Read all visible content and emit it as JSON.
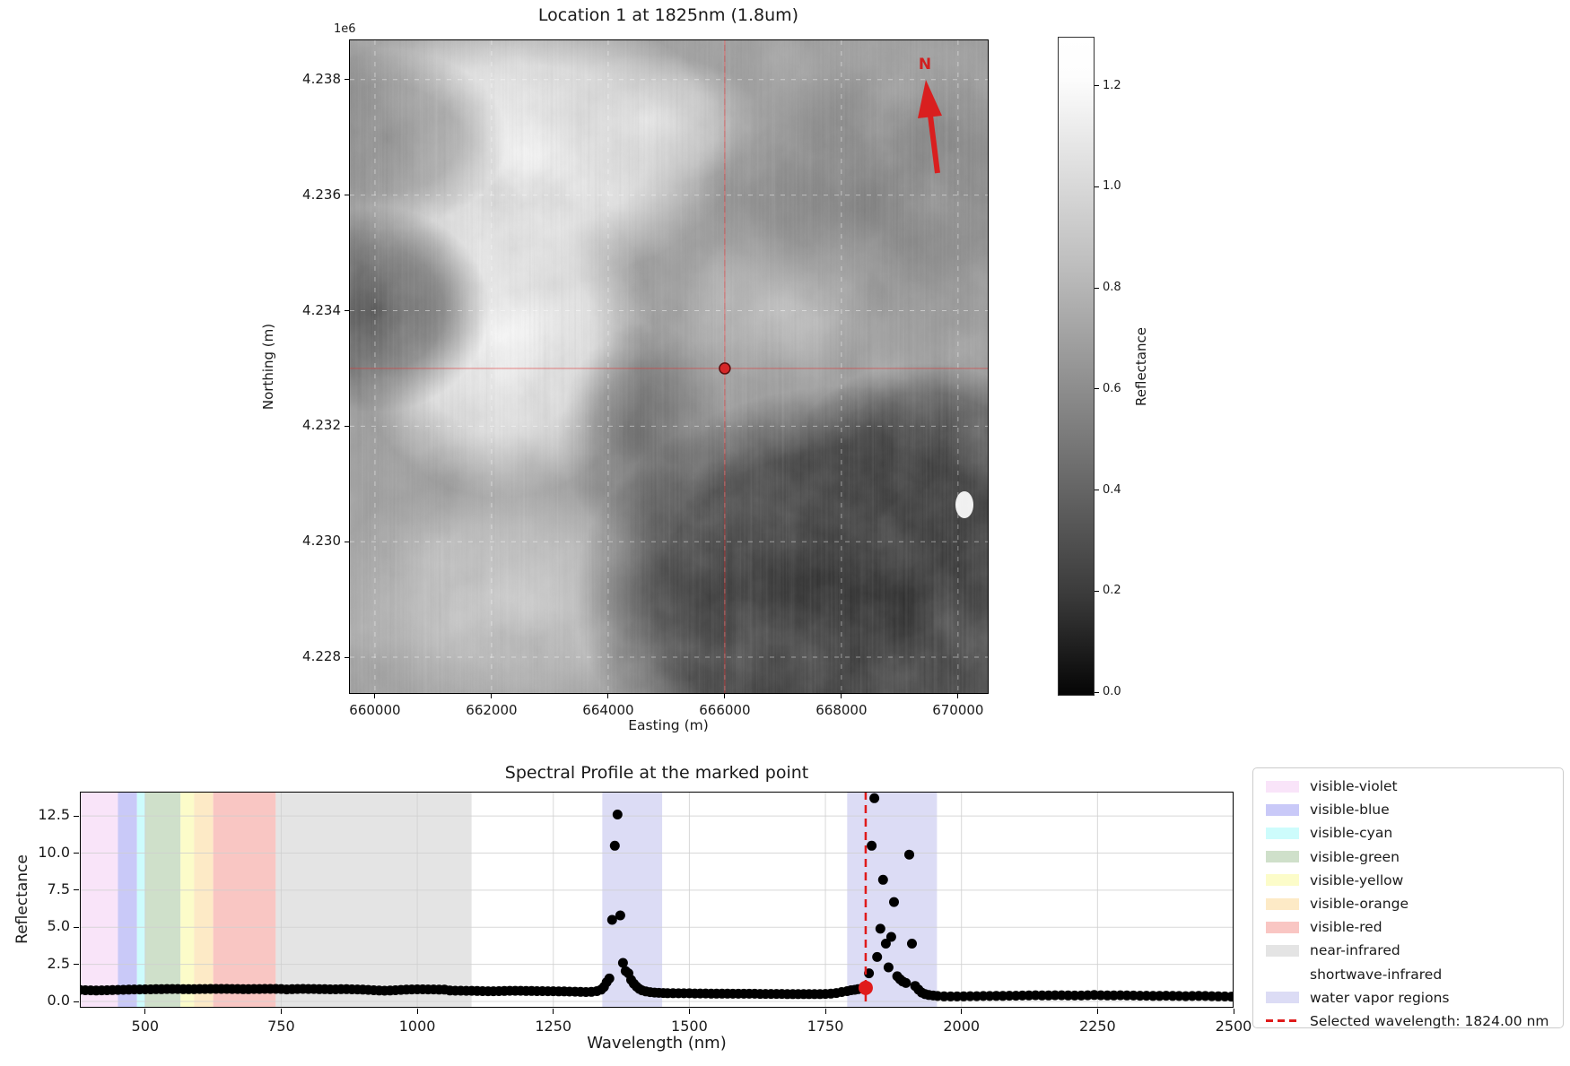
{
  "map": {
    "title": "Location 1 at 1825nm (1.8um)",
    "xlabel": "Easting (m)",
    "ylabel": "Northing (m)",
    "offset_label": "1e6",
    "north_label": "N",
    "x_tick_labels": [
      "660000",
      "662000",
      "664000",
      "666000",
      "668000",
      "670000"
    ],
    "y_tick_labels": [
      "4.238",
      "4.236",
      "4.234",
      "4.232",
      "4.230",
      "4.228"
    ],
    "marker_color": "#d62728",
    "crosshair_color": "#e03131"
  },
  "colorbar": {
    "label": "Reflectance",
    "tick_labels": [
      "0.0",
      "0.2",
      "0.4",
      "0.6",
      "0.8",
      "1.0",
      "1.2"
    ]
  },
  "spectrum": {
    "title": "Spectral Profile at the marked point",
    "xlabel": "Wavelength (nm)",
    "ylabel": "Reflectance",
    "x_tick_labels": [
      "500",
      "750",
      "1000",
      "1250",
      "1500",
      "1750",
      "2000",
      "2250",
      "2500"
    ],
    "y_tick_labels": [
      "0.0",
      "2.5",
      "5.0",
      "7.5",
      "10.0",
      "12.5"
    ]
  },
  "legend": {
    "entries": [
      {
        "label": "visible-violet",
        "swatch": "#f9e4f9",
        "kind": "patch"
      },
      {
        "label": "visible-blue",
        "swatch": "#c9c9f8",
        "kind": "patch"
      },
      {
        "label": "visible-cyan",
        "swatch": "#cdfcfc",
        "kind": "patch"
      },
      {
        "label": "visible-green",
        "swatch": "#cfe0ca",
        "kind": "patch"
      },
      {
        "label": "visible-yellow",
        "swatch": "#fcfcc9",
        "kind": "patch"
      },
      {
        "label": "visible-orange",
        "swatch": "#fdeac6",
        "kind": "patch"
      },
      {
        "label": "visible-red",
        "swatch": "#f9c6c3",
        "kind": "patch"
      },
      {
        "label": "near-infrared",
        "swatch": "#e4e4e4",
        "kind": "patch"
      },
      {
        "label": "shortwave-infrared",
        "swatch": "#ffffff",
        "kind": "patch"
      },
      {
        "label": "water vapor regions",
        "swatch": "#dcdcf5",
        "kind": "patch"
      },
      {
        "label": "Selected wavelength: 1824.00 nm",
        "swatch": "#e01b1b",
        "kind": "dashed-line"
      }
    ]
  },
  "chart_data": [
    {
      "type": "heatmap",
      "title": "Location 1 at 1825nm (1.8um)",
      "xlabel": "Easting (m)",
      "ylabel": "Northing (m)",
      "x_ticks": [
        660000,
        662000,
        664000,
        666000,
        668000,
        670000
      ],
      "y_ticks": [
        4238000,
        4236000,
        4234000,
        4232000,
        4230000,
        4228000
      ],
      "xlim": [
        659570,
        670510
      ],
      "ylim": [
        4227380,
        4238680
      ],
      "grid": true,
      "marked_point": {
        "easting": 666000,
        "northing": 4233000
      },
      "north_arrow": true,
      "colorbar": {
        "label": "Reflectance",
        "ticks": [
          0.0,
          0.2,
          0.4,
          0.6,
          0.8,
          1.0,
          1.2
        ],
        "vmin": -0.005,
        "vmax": 1.295
      },
      "description": "grayscale terrain reflectance image; bright high-reflectance ridge upper-left/center, dark low-reflectance basin lower-right with vertical sensor striping"
    },
    {
      "type": "scatter",
      "title": "Spectral Profile at the marked point",
      "xlabel": "Wavelength (nm)",
      "ylabel": "Reflectance",
      "xlim": [
        380,
        2500
      ],
      "ylim": [
        -0.42,
        14.14
      ],
      "x_ticks": [
        500,
        750,
        1000,
        1250,
        1500,
        1750,
        2000,
        2250,
        2500
      ],
      "y_ticks": [
        0.0,
        2.5,
        5.0,
        7.5,
        10.0,
        12.5
      ],
      "grid": true,
      "marker_color": "#000000",
      "selected": {
        "wavelength": 1824.0,
        "reflectance": 0.92,
        "label": "Selected wavelength: 1824.00 nm",
        "color": "#e01b1b"
      },
      "bands": [
        {
          "label": "visible-violet",
          "ranges": [
            [
              380,
              450
            ]
          ],
          "color": "#f9e4f9"
        },
        {
          "label": "visible-blue",
          "ranges": [
            [
              450,
              485
            ]
          ],
          "color": "#c9c9f8"
        },
        {
          "label": "visible-cyan",
          "ranges": [
            [
              485,
              500
            ]
          ],
          "color": "#cdfcfc"
        },
        {
          "label": "visible-green",
          "ranges": [
            [
              500,
              565
            ]
          ],
          "color": "#cfe0ca"
        },
        {
          "label": "visible-yellow",
          "ranges": [
            [
              565,
              590
            ]
          ],
          "color": "#fcfcc9"
        },
        {
          "label": "visible-orange",
          "ranges": [
            [
              590,
              625
            ]
          ],
          "color": "#fdeac6"
        },
        {
          "label": "visible-red",
          "ranges": [
            [
              625,
              740
            ]
          ],
          "color": "#f9c6c3"
        },
        {
          "label": "near-infrared",
          "ranges": [
            [
              740,
              1100
            ]
          ],
          "color": "#e4e4e4"
        },
        {
          "label": "shortwave-infrared",
          "ranges": [
            [
              1100,
              2500
            ]
          ],
          "color": "#ffffff"
        },
        {
          "label": "water vapor regions",
          "ranges": [
            [
              1340,
              1450
            ],
            [
              1790,
              1955
            ]
          ],
          "color": "#dcdcf5"
        }
      ],
      "points": [
        [
          380,
          0.78
        ],
        [
          390,
          0.76
        ],
        [
          400,
          0.75
        ],
        [
          410,
          0.74
        ],
        [
          420,
          0.75
        ],
        [
          430,
          0.76
        ],
        [
          440,
          0.77
        ],
        [
          450,
          0.78
        ],
        [
          460,
          0.79
        ],
        [
          470,
          0.8
        ],
        [
          480,
          0.81
        ],
        [
          490,
          0.81
        ],
        [
          500,
          0.82
        ],
        [
          510,
          0.82
        ],
        [
          520,
          0.83
        ],
        [
          530,
          0.83
        ],
        [
          540,
          0.84
        ],
        [
          550,
          0.84
        ],
        [
          560,
          0.84
        ],
        [
          570,
          0.83
        ],
        [
          580,
          0.83
        ],
        [
          590,
          0.83
        ],
        [
          600,
          0.84
        ],
        [
          610,
          0.84
        ],
        [
          620,
          0.85
        ],
        [
          630,
          0.85
        ],
        [
          640,
          0.85
        ],
        [
          650,
          0.85
        ],
        [
          660,
          0.84
        ],
        [
          670,
          0.84
        ],
        [
          680,
          0.83
        ],
        [
          690,
          0.83
        ],
        [
          700,
          0.84
        ],
        [
          710,
          0.84
        ],
        [
          720,
          0.85
        ],
        [
          730,
          0.85
        ],
        [
          740,
          0.85
        ],
        [
          750,
          0.84
        ],
        [
          760,
          0.81
        ],
        [
          770,
          0.83
        ],
        [
          780,
          0.84
        ],
        [
          790,
          0.85
        ],
        [
          800,
          0.84
        ],
        [
          810,
          0.84
        ],
        [
          820,
          0.83
        ],
        [
          830,
          0.83
        ],
        [
          840,
          0.82
        ],
        [
          850,
          0.82
        ],
        [
          860,
          0.83
        ],
        [
          870,
          0.83
        ],
        [
          880,
          0.82
        ],
        [
          890,
          0.81
        ],
        [
          900,
          0.8
        ],
        [
          910,
          0.78
        ],
        [
          920,
          0.76
        ],
        [
          930,
          0.74
        ],
        [
          940,
          0.73
        ],
        [
          950,
          0.74
        ],
        [
          960,
          0.76
        ],
        [
          970,
          0.78
        ],
        [
          980,
          0.8
        ],
        [
          990,
          0.81
        ],
        [
          1000,
          0.82
        ],
        [
          1010,
          0.82
        ],
        [
          1020,
          0.81
        ],
        [
          1030,
          0.81
        ],
        [
          1040,
          0.8
        ],
        [
          1050,
          0.8
        ],
        [
          1060,
          0.74
        ],
        [
          1070,
          0.73
        ],
        [
          1080,
          0.73
        ],
        [
          1090,
          0.72
        ],
        [
          1100,
          0.72
        ],
        [
          1110,
          0.71
        ],
        [
          1120,
          0.7
        ],
        [
          1130,
          0.69
        ],
        [
          1140,
          0.69
        ],
        [
          1150,
          0.7
        ],
        [
          1160,
          0.71
        ],
        [
          1170,
          0.72
        ],
        [
          1180,
          0.72
        ],
        [
          1190,
          0.72
        ],
        [
          1200,
          0.71
        ],
        [
          1210,
          0.71
        ],
        [
          1220,
          0.7
        ],
        [
          1230,
          0.7
        ],
        [
          1240,
          0.69
        ],
        [
          1250,
          0.69
        ],
        [
          1260,
          0.68
        ],
        [
          1270,
          0.68
        ],
        [
          1280,
          0.67
        ],
        [
          1290,
          0.66
        ],
        [
          1300,
          0.65
        ],
        [
          1310,
          0.64
        ],
        [
          1320,
          0.65
        ],
        [
          1330,
          0.7
        ],
        [
          1338,
          0.8
        ],
        [
          1343,
          0.98
        ],
        [
          1348,
          1.3
        ],
        [
          1353,
          1.55
        ],
        [
          1358,
          5.5
        ],
        [
          1363,
          10.5
        ],
        [
          1368,
          12.6
        ],
        [
          1373,
          5.8
        ],
        [
          1378,
          2.6
        ],
        [
          1383,
          2.05
        ],
        [
          1388,
          1.9
        ],
        [
          1393,
          1.45
        ],
        [
          1398,
          1.2
        ],
        [
          1403,
          1.0
        ],
        [
          1408,
          0.85
        ],
        [
          1413,
          0.75
        ],
        [
          1420,
          0.68
        ],
        [
          1428,
          0.63
        ],
        [
          1436,
          0.6
        ],
        [
          1444,
          0.58
        ],
        [
          1452,
          0.57
        ],
        [
          1460,
          0.56
        ],
        [
          1470,
          0.56
        ],
        [
          1480,
          0.55
        ],
        [
          1490,
          0.55
        ],
        [
          1500,
          0.55
        ],
        [
          1510,
          0.54
        ],
        [
          1520,
          0.54
        ],
        [
          1530,
          0.54
        ],
        [
          1540,
          0.53
        ],
        [
          1550,
          0.53
        ],
        [
          1560,
          0.53
        ],
        [
          1570,
          0.53
        ],
        [
          1580,
          0.52
        ],
        [
          1590,
          0.52
        ],
        [
          1600,
          0.52
        ],
        [
          1610,
          0.52
        ],
        [
          1620,
          0.52
        ],
        [
          1630,
          0.51
        ],
        [
          1640,
          0.51
        ],
        [
          1650,
          0.51
        ],
        [
          1660,
          0.51
        ],
        [
          1670,
          0.51
        ],
        [
          1680,
          0.5
        ],
        [
          1690,
          0.5
        ],
        [
          1700,
          0.5
        ],
        [
          1710,
          0.5
        ],
        [
          1720,
          0.5
        ],
        [
          1730,
          0.5
        ],
        [
          1740,
          0.5
        ],
        [
          1750,
          0.51
        ],
        [
          1760,
          0.53
        ],
        [
          1770,
          0.57
        ],
        [
          1780,
          0.64
        ],
        [
          1790,
          0.7
        ],
        [
          1797,
          0.76
        ],
        [
          1804,
          0.79
        ],
        [
          1810,
          0.83
        ],
        [
          1817,
          0.88
        ],
        [
          1830,
          1.9
        ],
        [
          1835,
          10.5
        ],
        [
          1840,
          13.7
        ],
        [
          1845,
          3.0
        ],
        [
          1851,
          4.9
        ],
        [
          1856,
          8.2
        ],
        [
          1861,
          3.9
        ],
        [
          1866,
          2.3
        ],
        [
          1871,
          4.35
        ],
        [
          1876,
          6.7
        ],
        [
          1882,
          1.7
        ],
        [
          1887,
          1.5
        ],
        [
          1892,
          1.35
        ],
        [
          1898,
          1.25
        ],
        [
          1904,
          9.9
        ],
        [
          1909,
          3.9
        ],
        [
          1915,
          1.05
        ],
        [
          1921,
          0.8
        ],
        [
          1927,
          0.6
        ],
        [
          1933,
          0.5
        ],
        [
          1940,
          0.44
        ],
        [
          1948,
          0.4
        ],
        [
          1956,
          0.37
        ],
        [
          1968,
          0.35
        ],
        [
          1980,
          0.34
        ],
        [
          1992,
          0.34
        ],
        [
          2004,
          0.35
        ],
        [
          2016,
          0.36
        ],
        [
          2028,
          0.36
        ],
        [
          2040,
          0.37
        ],
        [
          2052,
          0.37
        ],
        [
          2064,
          0.38
        ],
        [
          2076,
          0.38
        ],
        [
          2088,
          0.39
        ],
        [
          2100,
          0.39
        ],
        [
          2112,
          0.4
        ],
        [
          2124,
          0.41
        ],
        [
          2136,
          0.42
        ],
        [
          2148,
          0.41
        ],
        [
          2160,
          0.41
        ],
        [
          2172,
          0.42
        ],
        [
          2184,
          0.42
        ],
        [
          2196,
          0.41
        ],
        [
          2208,
          0.4
        ],
        [
          2220,
          0.4
        ],
        [
          2232,
          0.42
        ],
        [
          2244,
          0.44
        ],
        [
          2256,
          0.42
        ],
        [
          2268,
          0.41
        ],
        [
          2280,
          0.41
        ],
        [
          2292,
          0.42
        ],
        [
          2304,
          0.41
        ],
        [
          2316,
          0.4
        ],
        [
          2328,
          0.39
        ],
        [
          2340,
          0.39
        ],
        [
          2352,
          0.38
        ],
        [
          2364,
          0.38
        ],
        [
          2376,
          0.39
        ],
        [
          2388,
          0.38
        ],
        [
          2400,
          0.37
        ],
        [
          2412,
          0.36
        ],
        [
          2424,
          0.37
        ],
        [
          2436,
          0.38
        ],
        [
          2448,
          0.37
        ],
        [
          2460,
          0.36
        ],
        [
          2472,
          0.35
        ],
        [
          2484,
          0.34
        ],
        [
          2496,
          0.33
        ]
      ]
    }
  ]
}
